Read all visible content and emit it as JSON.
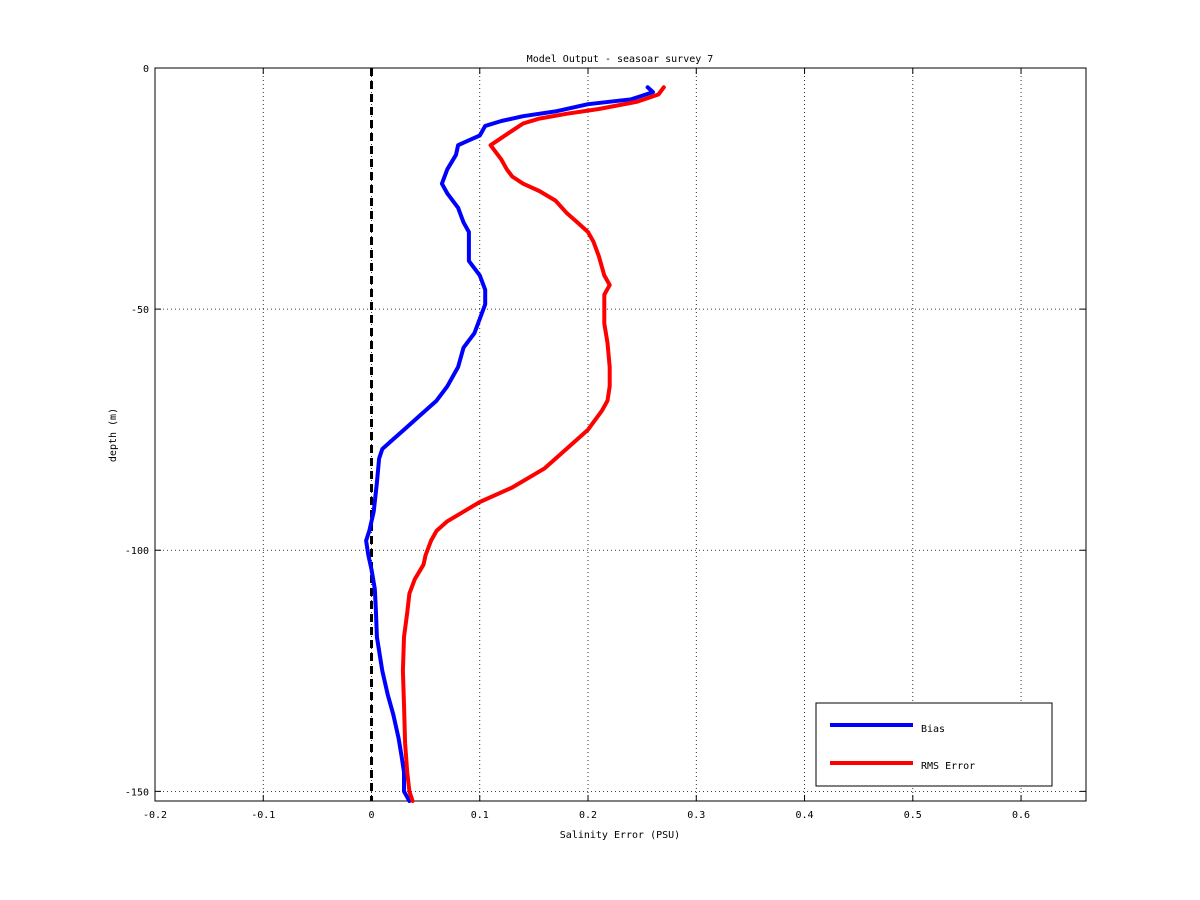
{
  "chart_data": {
    "type": "line",
    "title": "Model Output - seasoar survey 7",
    "xlabel": "Salinity Error  (PSU)",
    "ylabel": "depth (m)",
    "xlim": [
      -0.2,
      0.66
    ],
    "ylim": [
      -152,
      0
    ],
    "grid": true,
    "legend_position": "bottom-right",
    "x_ticks": [
      -0.2,
      -0.1,
      0,
      0.1,
      0.2,
      0.3,
      0.4,
      0.5,
      0.6
    ],
    "x_tick_labels": [
      "-0.2",
      "-0.1",
      "0",
      "0.1",
      "0.2",
      "0.3",
      "0.4",
      "0.5",
      "0.6"
    ],
    "y_ticks": [
      0,
      -50,
      -100,
      -150
    ],
    "y_tick_labels": [
      "0",
      "-50",
      "-100",
      "-150"
    ],
    "reference_line": {
      "x": 0,
      "style": "dashed",
      "color": "#000000"
    },
    "series": [
      {
        "name": "Bias",
        "color": "#0000ff",
        "points": [
          [
            0.255,
            -4
          ],
          [
            0.26,
            -5
          ],
          [
            0.24,
            -6.5
          ],
          [
            0.2,
            -7.5
          ],
          [
            0.17,
            -9
          ],
          [
            0.14,
            -10
          ],
          [
            0.12,
            -11
          ],
          [
            0.105,
            -12
          ],
          [
            0.1,
            -14
          ],
          [
            0.09,
            -15
          ],
          [
            0.08,
            -16
          ],
          [
            0.078,
            -18
          ],
          [
            0.07,
            -21
          ],
          [
            0.065,
            -24
          ],
          [
            0.07,
            -26
          ],
          [
            0.08,
            -29
          ],
          [
            0.085,
            -32
          ],
          [
            0.09,
            -34
          ],
          [
            0.09,
            -40
          ],
          [
            0.1,
            -43
          ],
          [
            0.105,
            -46
          ],
          [
            0.105,
            -49
          ],
          [
            0.1,
            -52
          ],
          [
            0.095,
            -55
          ],
          [
            0.085,
            -58
          ],
          [
            0.08,
            -62
          ],
          [
            0.07,
            -66
          ],
          [
            0.06,
            -69
          ],
          [
            0.045,
            -72
          ],
          [
            0.03,
            -75
          ],
          [
            0.02,
            -77
          ],
          [
            0.01,
            -79
          ],
          [
            0.007,
            -81
          ],
          [
            0.005,
            -86
          ],
          [
            0.002,
            -92
          ],
          [
            -0.002,
            -96
          ],
          [
            -0.005,
            -98
          ],
          [
            -0.003,
            -101
          ],
          [
            0,
            -104
          ],
          [
            0.003,
            -108
          ],
          [
            0.004,
            -112
          ],
          [
            0.005,
            -118
          ],
          [
            0.01,
            -125
          ],
          [
            0.015,
            -130
          ],
          [
            0.02,
            -134
          ],
          [
            0.025,
            -139
          ],
          [
            0.028,
            -143
          ],
          [
            0.03,
            -146
          ],
          [
            0.03,
            -150
          ],
          [
            0.035,
            -152
          ]
        ]
      },
      {
        "name": "RMS Error",
        "color": "#ff0000",
        "points": [
          [
            0.27,
            -4
          ],
          [
            0.265,
            -5.5
          ],
          [
            0.245,
            -7
          ],
          [
            0.21,
            -8.5
          ],
          [
            0.18,
            -9.5
          ],
          [
            0.155,
            -10.5
          ],
          [
            0.14,
            -11.5
          ],
          [
            0.13,
            -13
          ],
          [
            0.12,
            -14.5
          ],
          [
            0.11,
            -16
          ],
          [
            0.115,
            -17.5
          ],
          [
            0.12,
            -19
          ],
          [
            0.125,
            -21
          ],
          [
            0.13,
            -22.5
          ],
          [
            0.14,
            -24
          ],
          [
            0.155,
            -25.5
          ],
          [
            0.17,
            -27.5
          ],
          [
            0.18,
            -30
          ],
          [
            0.19,
            -32
          ],
          [
            0.2,
            -34
          ],
          [
            0.205,
            -36
          ],
          [
            0.21,
            -39
          ],
          [
            0.215,
            -43
          ],
          [
            0.22,
            -45
          ],
          [
            0.215,
            -47
          ],
          [
            0.215,
            -50
          ],
          [
            0.215,
            -53
          ],
          [
            0.218,
            -57
          ],
          [
            0.22,
            -62
          ],
          [
            0.22,
            -66
          ],
          [
            0.218,
            -69
          ],
          [
            0.213,
            -71
          ],
          [
            0.2,
            -75
          ],
          [
            0.18,
            -79
          ],
          [
            0.16,
            -83
          ],
          [
            0.13,
            -87
          ],
          [
            0.1,
            -90
          ],
          [
            0.085,
            -92
          ],
          [
            0.07,
            -94
          ],
          [
            0.06,
            -96
          ],
          [
            0.055,
            -98
          ],
          [
            0.05,
            -101
          ],
          [
            0.048,
            -103
          ],
          [
            0.04,
            -106
          ],
          [
            0.035,
            -109
          ],
          [
            0.033,
            -113
          ],
          [
            0.03,
            -118
          ],
          [
            0.029,
            -125
          ],
          [
            0.03,
            -132
          ],
          [
            0.031,
            -140
          ],
          [
            0.033,
            -146
          ],
          [
            0.035,
            -150
          ],
          [
            0.038,
            -152
          ]
        ]
      }
    ]
  }
}
